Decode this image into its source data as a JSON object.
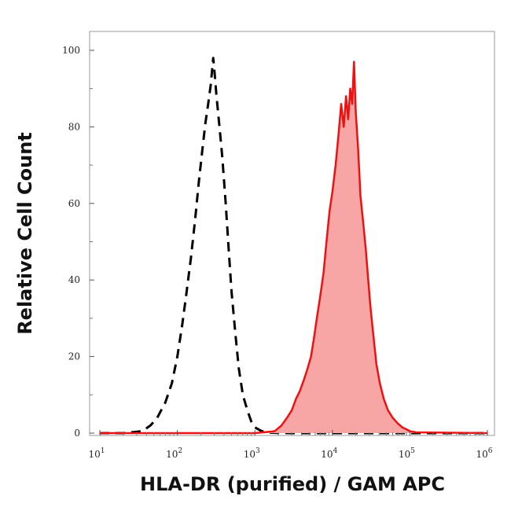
{
  "chart_data": {
    "type": "area",
    "title": "",
    "xlabel": "HLA-DR (purified) / GAM APC",
    "ylabel": "Relative Cell Count",
    "x_scale": "log",
    "xlim": [
      10,
      1000000
    ],
    "ylim": [
      0,
      100
    ],
    "grid": false,
    "legend": "none",
    "x_ticks": [
      {
        "base": "10",
        "exp": "1"
      },
      {
        "base": "10",
        "exp": "2"
      },
      {
        "base": "10",
        "exp": "3"
      },
      {
        "base": "10",
        "exp": "4"
      },
      {
        "base": "10",
        "exp": "5"
      },
      {
        "base": "10",
        "exp": "6"
      }
    ],
    "y_ticks": [
      "0",
      "20",
      "40",
      "60",
      "80",
      "100"
    ],
    "series": [
      {
        "style": "dashed-black",
        "color": "#000000",
        "x": [
          10,
          20,
          35,
          45,
          55,
          70,
          85,
          100,
          115,
          130,
          150,
          170,
          190,
          210,
          230,
          250,
          270,
          290,
          300,
          320,
          350,
          380,
          420,
          460,
          500,
          560,
          620,
          700,
          800,
          900,
          1000,
          1200,
          1400,
          1700,
          2000,
          3000,
          5000,
          10000,
          100000,
          1000000
        ],
        "y": [
          0,
          0,
          0.5,
          2,
          4,
          8,
          13,
          20,
          28,
          36,
          46,
          56,
          66,
          74,
          81,
          86,
          91,
          98,
          95,
          88,
          80,
          72,
          60,
          48,
          37,
          26,
          17,
          10,
          6,
          3,
          1.5,
          0.6,
          0.2,
          0.1,
          0.05,
          0,
          0,
          0,
          0,
          0
        ]
      },
      {
        "style": "filled-red",
        "color": "#ee1111",
        "fill": "#f8a5a5",
        "x": [
          10,
          1000,
          1800,
          2200,
          2600,
          3000,
          3400,
          3800,
          4300,
          4800,
          5300,
          5800,
          6300,
          7000,
          7700,
          8400,
          9200,
          10000,
          11000,
          12000,
          13000,
          14000,
          15000,
          16000,
          17000,
          18000,
          19000,
          20000,
          21500,
          23000,
          25000,
          27000,
          29000,
          31000,
          34000,
          37000,
          41000,
          46000,
          52000,
          60000,
          70000,
          80000,
          90000,
          100000,
          120000,
          1000000
        ],
        "y": [
          0,
          0,
          0.5,
          2,
          4,
          6,
          9,
          11,
          14,
          17,
          20,
          25,
          30,
          36,
          42,
          50,
          58,
          63,
          70,
          78,
          86,
          80,
          88,
          82,
          90,
          86,
          97,
          84,
          74,
          62,
          55,
          48,
          40,
          33,
          25,
          18,
          13,
          9,
          6,
          4,
          2.5,
          1.5,
          1,
          0.5,
          0.2,
          0
        ]
      }
    ]
  }
}
